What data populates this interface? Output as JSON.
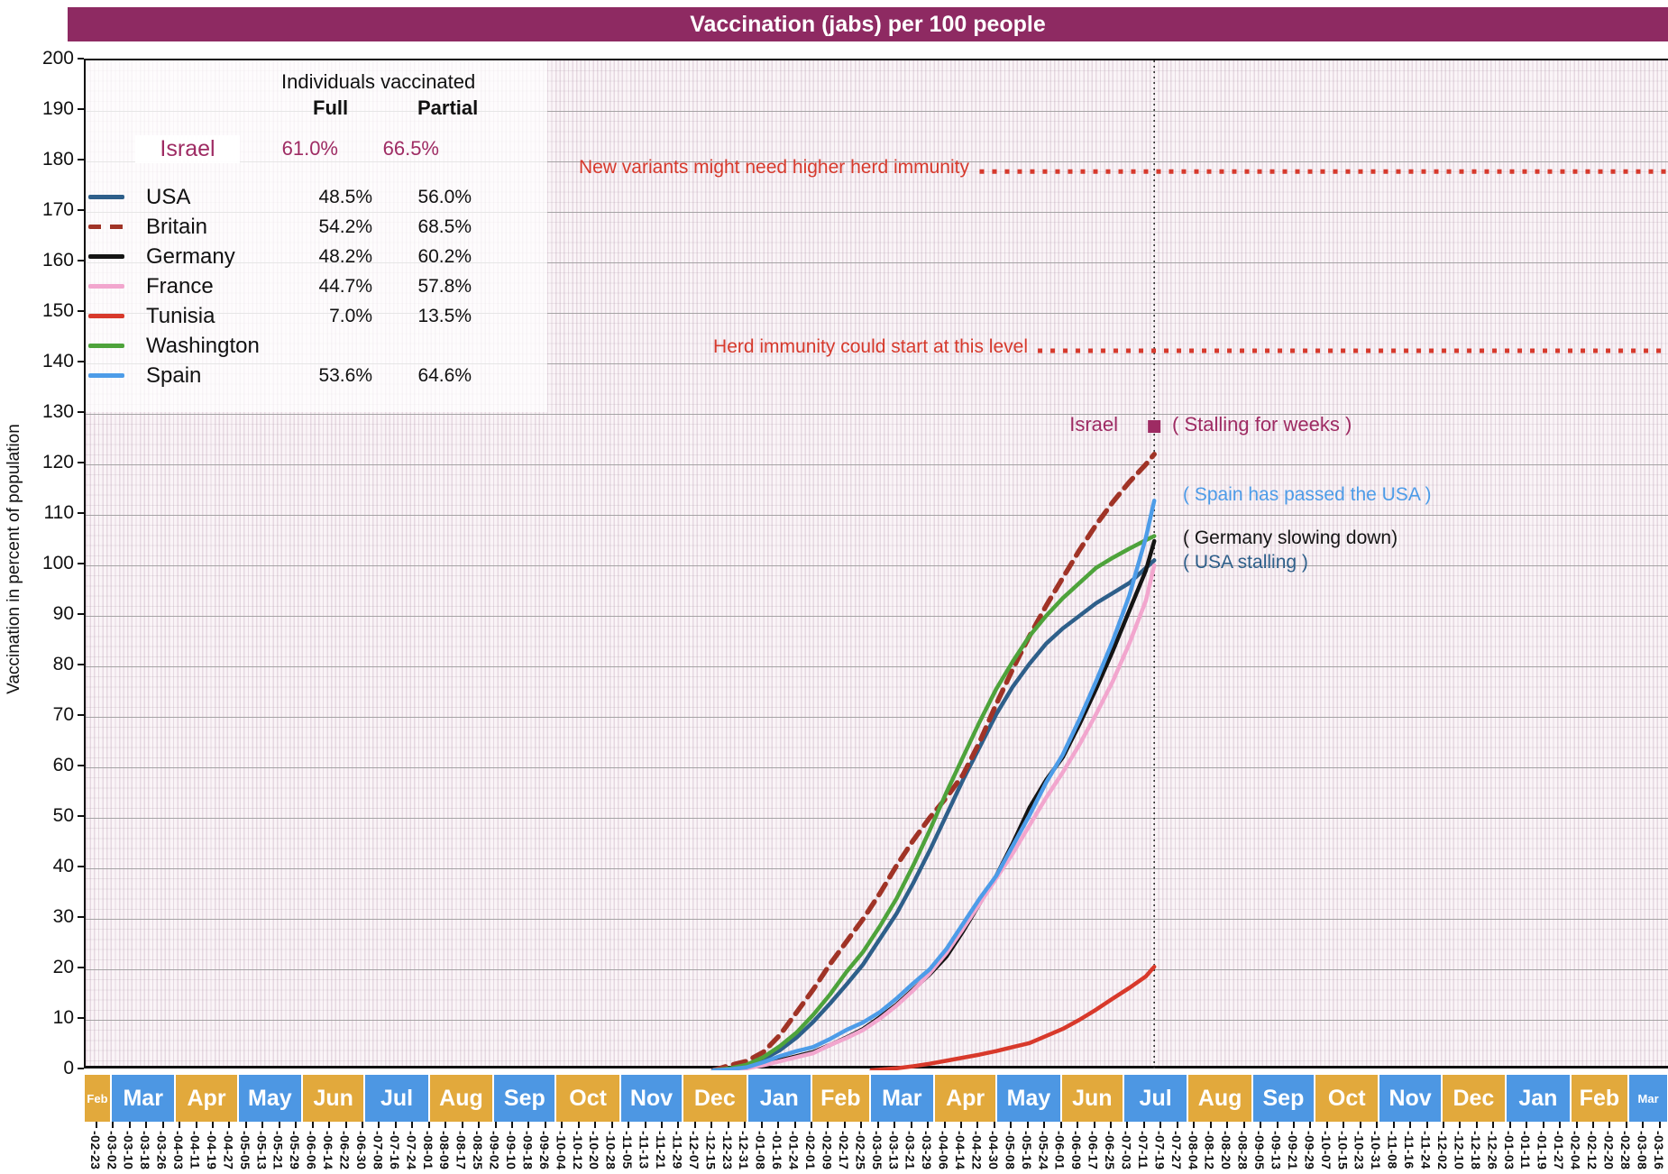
{
  "title": "Vaccination (jabs) per 100 people",
  "colors": {
    "title_bar": "#8E2A62",
    "month_gold": "#E2A93C",
    "month_blue": "#4D97E3",
    "annotation_red": "#D6392C",
    "israel": "#9E2B63"
  },
  "y_axis": {
    "label": "Vaccination in percent of population",
    "min": 0,
    "max": 200,
    "step": 10
  },
  "legend": {
    "header": "Individuals vaccinated",
    "col_full": "Full",
    "col_partial": "Partial",
    "israel": {
      "name": "Israel",
      "full": "61.0%",
      "partial": "66.5%",
      "color": "#9E2B63"
    },
    "rows": [
      {
        "name": "USA",
        "full": "48.5%",
        "partial": "56.0%",
        "color": "#2E5F8A",
        "dash": false
      },
      {
        "name": "Britain",
        "full": "54.2%",
        "partial": "68.5%",
        "color": "#A03326",
        "dash": true
      },
      {
        "name": "Germany",
        "full": "48.2%",
        "partial": "60.2%",
        "color": "#141414",
        "dash": false
      },
      {
        "name": "France",
        "full": "44.7%",
        "partial": "57.8%",
        "color": "#F2A6CE",
        "dash": false
      },
      {
        "name": "Tunisia",
        "full": "7.0%",
        "partial": "13.5%",
        "color": "#D8392B",
        "dash": false
      },
      {
        "name": "Washington",
        "full": "",
        "partial": "",
        "color": "#4EA33B",
        "dash": false
      },
      {
        "name": "Spain",
        "full": "53.6%",
        "partial": "64.6%",
        "color": "#4D9CE8",
        "dash": false
      }
    ]
  },
  "annotations": {
    "new_variants": "New variants might need higher herd immunity",
    "herd_immunity": "Herd immunity could start at this level",
    "israel_label": "Israel",
    "israel_stalling": "( Stalling for weeks )",
    "spain_passed": "( Spain has passed the USA )",
    "germany_slowing": "( Germany slowing down)",
    "usa_stalling": "( USA stalling )"
  },
  "chart_data": {
    "type": "line",
    "title": "Vaccination (jabs) per 100 people",
    "ylabel": "Vaccination in percent of population",
    "ylim": [
      0,
      200
    ],
    "grid": true,
    "x_axis": {
      "start_date": "2020-02-17",
      "end_date": "2022-03-20",
      "total_days": 762,
      "tick_interval_days": 8,
      "first_tick_day": 6,
      "tick_labels": [
        "-02-23",
        "-03-02",
        "-03-10",
        "-03-18",
        "-03-26",
        "-04-03",
        "-04-11",
        "-04-19",
        "-04-27",
        "-05-05",
        "-05-13",
        "-05-21",
        "-05-29",
        "-06-06",
        "-06-14",
        "-06-22",
        "-06-30",
        "-07-08",
        "-07-16",
        "-07-24",
        "-08-01",
        "-08-09",
        "-08-17",
        "-08-25",
        "-09-02",
        "-09-10",
        "-09-18",
        "-09-26",
        "-10-04",
        "-10-12",
        "-10-20",
        "-10-28",
        "-11-05",
        "-11-13",
        "-11-21",
        "-11-29",
        "-12-07",
        "-12-15",
        "-12-23",
        "-12-31",
        "-01-08",
        "-01-16",
        "-01-24",
        "-02-01",
        "-02-09",
        "-02-17",
        "-02-25",
        "-03-05",
        "-03-13",
        "-03-21",
        "-03-29",
        "-04-06",
        "-04-14",
        "-04-22",
        "-04-30",
        "-05-08",
        "-05-16",
        "-05-24",
        "-06-01",
        "-06-09",
        "-06-17",
        "-06-25",
        "-07-03",
        "-07-11",
        "-07-19",
        "-07-27",
        "-08-04",
        "-08-12",
        "-08-20",
        "-08-28",
        "-09-05",
        "-09-13",
        "-09-21",
        "-09-29",
        "-10-07",
        "-10-15",
        "-10-23",
        "-10-31",
        "-11-08",
        "-11-16",
        "-11-24",
        "-12-02",
        "-12-10",
        "-12-18",
        "-12-26",
        "-01-03",
        "-01-11",
        "-01-19",
        "-01-27",
        "-02-04",
        "-02-12",
        "-02-20",
        "-02-28",
        "-03-08",
        "-03-16"
      ]
    },
    "months": [
      {
        "label": "Feb",
        "start": 0,
        "end": 13,
        "tone": "gold"
      },
      {
        "label": "Mar",
        "start": 13,
        "end": 44,
        "tone": "blue"
      },
      {
        "label": "Apr",
        "start": 44,
        "end": 74,
        "tone": "gold"
      },
      {
        "label": "May",
        "start": 74,
        "end": 105,
        "tone": "blue"
      },
      {
        "label": "Jun",
        "start": 105,
        "end": 135,
        "tone": "gold"
      },
      {
        "label": "Jul",
        "start": 135,
        "end": 166,
        "tone": "blue"
      },
      {
        "label": "Aug",
        "start": 166,
        "end": 197,
        "tone": "gold"
      },
      {
        "label": "Sep",
        "start": 197,
        "end": 227,
        "tone": "blue"
      },
      {
        "label": "Oct",
        "start": 227,
        "end": 258,
        "tone": "gold"
      },
      {
        "label": "Nov",
        "start": 258,
        "end": 288,
        "tone": "blue"
      },
      {
        "label": "Dec",
        "start": 288,
        "end": 319,
        "tone": "gold"
      },
      {
        "label": "Jan",
        "start": 319,
        "end": 350,
        "tone": "blue"
      },
      {
        "label": "Feb",
        "start": 350,
        "end": 378,
        "tone": "gold"
      },
      {
        "label": "Mar",
        "start": 378,
        "end": 409,
        "tone": "blue"
      },
      {
        "label": "Apr",
        "start": 409,
        "end": 439,
        "tone": "gold"
      },
      {
        "label": "May",
        "start": 439,
        "end": 470,
        "tone": "blue"
      },
      {
        "label": "Jun",
        "start": 470,
        "end": 500,
        "tone": "gold"
      },
      {
        "label": "Jul",
        "start": 500,
        "end": 531,
        "tone": "blue"
      },
      {
        "label": "Aug",
        "start": 531,
        "end": 562,
        "tone": "gold"
      },
      {
        "label": "Sep",
        "start": 562,
        "end": 592,
        "tone": "blue"
      },
      {
        "label": "Oct",
        "start": 592,
        "end": 623,
        "tone": "gold"
      },
      {
        "label": "Nov",
        "start": 623,
        "end": 653,
        "tone": "blue"
      },
      {
        "label": "Dec",
        "start": 653,
        "end": 684,
        "tone": "gold"
      },
      {
        "label": "Jan",
        "start": 684,
        "end": 715,
        "tone": "blue"
      },
      {
        "label": "Feb",
        "start": 715,
        "end": 743,
        "tone": "gold"
      },
      {
        "label": "Mar",
        "start": 743,
        "end": 762,
        "tone": "blue"
      }
    ],
    "cutoff_day": 514,
    "reference_lines": [
      {
        "label": "New variants might need higher herd immunity",
        "value": 178,
        "dots_from_day": 430
      },
      {
        "label": "Herd immunity could start at this level",
        "value": 142.5,
        "dots_from_day": 458
      }
    ],
    "israel_marker": {
      "day": 514,
      "value": 127.5,
      "color": "#9E2B63"
    },
    "series": [
      {
        "name": "USA",
        "color": "#2E5F8A",
        "dash": "solid",
        "points": [
          [
            302,
            0
          ],
          [
            310,
            0.3
          ],
          [
            318,
            0.9
          ],
          [
            326,
            2.2
          ],
          [
            334,
            4
          ],
          [
            342,
            6.5
          ],
          [
            350,
            9.6
          ],
          [
            358,
            13.2
          ],
          [
            366,
            17
          ],
          [
            374,
            21
          ],
          [
            382,
            26
          ],
          [
            390,
            31
          ],
          [
            398,
            37
          ],
          [
            406,
            43.5
          ],
          [
            414,
            50.5
          ],
          [
            422,
            57.5
          ],
          [
            430,
            64
          ],
          [
            438,
            70.5
          ],
          [
            446,
            76
          ],
          [
            454,
            80.5
          ],
          [
            462,
            84.5
          ],
          [
            470,
            87.5
          ],
          [
            478,
            90
          ],
          [
            486,
            92.5
          ],
          [
            494,
            94.5
          ],
          [
            502,
            96.5
          ],
          [
            510,
            99.5
          ],
          [
            514,
            101
          ]
        ]
      },
      {
        "name": "Britain",
        "color": "#A03326",
        "dash": "dashed",
        "points": [
          [
            302,
            0
          ],
          [
            310,
            1
          ],
          [
            318,
            1.8
          ],
          [
            326,
            3.6
          ],
          [
            334,
            7
          ],
          [
            342,
            11.5
          ],
          [
            350,
            16
          ],
          [
            358,
            21
          ],
          [
            366,
            25.5
          ],
          [
            374,
            30
          ],
          [
            382,
            35
          ],
          [
            390,
            40.5
          ],
          [
            398,
            45.5
          ],
          [
            406,
            50
          ],
          [
            414,
            54
          ],
          [
            422,
            58.5
          ],
          [
            430,
            65
          ],
          [
            438,
            72.5
          ],
          [
            446,
            79.5
          ],
          [
            454,
            86
          ],
          [
            462,
            92
          ],
          [
            470,
            97.5
          ],
          [
            478,
            103
          ],
          [
            486,
            108
          ],
          [
            494,
            112.5
          ],
          [
            502,
            116.5
          ],
          [
            510,
            120
          ],
          [
            514,
            122
          ]
        ]
      },
      {
        "name": "Germany",
        "color": "#141414",
        "dash": "solid",
        "points": [
          [
            302,
            0
          ],
          [
            310,
            0.2
          ],
          [
            318,
            0.5
          ],
          [
            326,
            1.2
          ],
          [
            334,
            2
          ],
          [
            342,
            2.8
          ],
          [
            350,
            3.6
          ],
          [
            358,
            5
          ],
          [
            366,
            6.5
          ],
          [
            374,
            8.2
          ],
          [
            382,
            10.5
          ],
          [
            390,
            13
          ],
          [
            398,
            16
          ],
          [
            406,
            19
          ],
          [
            414,
            22.5
          ],
          [
            422,
            27.5
          ],
          [
            430,
            33
          ],
          [
            438,
            38.5
          ],
          [
            446,
            45
          ],
          [
            454,
            52
          ],
          [
            462,
            57.5
          ],
          [
            470,
            62
          ],
          [
            478,
            68.5
          ],
          [
            486,
            75.5
          ],
          [
            494,
            83
          ],
          [
            502,
            91
          ],
          [
            510,
            99
          ],
          [
            514,
            104.8
          ]
        ]
      },
      {
        "name": "France",
        "color": "#F2A6CE",
        "dash": "solid",
        "points": [
          [
            302,
            0
          ],
          [
            310,
            0.1
          ],
          [
            318,
            0.4
          ],
          [
            326,
            1
          ],
          [
            334,
            1.8
          ],
          [
            342,
            2.6
          ],
          [
            350,
            3.4
          ],
          [
            358,
            5
          ],
          [
            366,
            6.4
          ],
          [
            374,
            8
          ],
          [
            382,
            10.2
          ],
          [
            390,
            12.8
          ],
          [
            398,
            15.8
          ],
          [
            406,
            19.2
          ],
          [
            414,
            23.2
          ],
          [
            422,
            28
          ],
          [
            430,
            33
          ],
          [
            438,
            38
          ],
          [
            446,
            43
          ],
          [
            454,
            48.5
          ],
          [
            462,
            54
          ],
          [
            470,
            59
          ],
          [
            478,
            64.5
          ],
          [
            486,
            70.5
          ],
          [
            494,
            77
          ],
          [
            502,
            84.5
          ],
          [
            510,
            93
          ],
          [
            514,
            100
          ]
        ]
      },
      {
        "name": "Tunisia",
        "color": "#D8392B",
        "dash": "solid",
        "points": [
          [
            378,
            0
          ],
          [
            390,
            0.4
          ],
          [
            398,
            0.8
          ],
          [
            406,
            1.3
          ],
          [
            414,
            1.9
          ],
          [
            422,
            2.5
          ],
          [
            430,
            3.1
          ],
          [
            438,
            3.8
          ],
          [
            446,
            4.6
          ],
          [
            454,
            5.4
          ],
          [
            462,
            6.8
          ],
          [
            470,
            8.2
          ],
          [
            478,
            10
          ],
          [
            486,
            12
          ],
          [
            494,
            14.2
          ],
          [
            502,
            16.3
          ],
          [
            510,
            18.6
          ],
          [
            514,
            20.5
          ]
        ]
      },
      {
        "name": "Washington",
        "color": "#4EA33B",
        "dash": "solid",
        "points": [
          [
            302,
            0
          ],
          [
            310,
            0.4
          ],
          [
            318,
            1.1
          ],
          [
            326,
            2.6
          ],
          [
            334,
            4.8
          ],
          [
            342,
            7.5
          ],
          [
            350,
            11
          ],
          [
            358,
            15
          ],
          [
            366,
            19.5
          ],
          [
            374,
            23.5
          ],
          [
            382,
            28.5
          ],
          [
            390,
            34
          ],
          [
            398,
            40.5
          ],
          [
            406,
            47.5
          ],
          [
            414,
            55
          ],
          [
            422,
            62
          ],
          [
            430,
            69
          ],
          [
            438,
            75.5
          ],
          [
            446,
            81
          ],
          [
            454,
            86
          ],
          [
            462,
            90
          ],
          [
            470,
            93.5
          ],
          [
            478,
            96.5
          ],
          [
            486,
            99.5
          ],
          [
            494,
            101.5
          ],
          [
            502,
            103.3
          ],
          [
            510,
            105
          ],
          [
            514,
            105.8
          ]
        ]
      },
      {
        "name": "Spain",
        "color": "#4D9CE8",
        "dash": "solid",
        "points": [
          [
            302,
            0
          ],
          [
            310,
            0.2
          ],
          [
            318,
            0.6
          ],
          [
            326,
            1.6
          ],
          [
            334,
            2.8
          ],
          [
            342,
            3.8
          ],
          [
            350,
            4.6
          ],
          [
            358,
            6.2
          ],
          [
            366,
            8
          ],
          [
            374,
            9.5
          ],
          [
            382,
            11.5
          ],
          [
            390,
            14.2
          ],
          [
            398,
            17.2
          ],
          [
            406,
            20
          ],
          [
            414,
            24
          ],
          [
            422,
            29
          ],
          [
            430,
            34
          ],
          [
            438,
            38.5
          ],
          [
            446,
            44.5
          ],
          [
            454,
            50.5
          ],
          [
            462,
            57
          ],
          [
            470,
            62.5
          ],
          [
            478,
            69.5
          ],
          [
            486,
            77
          ],
          [
            494,
            85
          ],
          [
            502,
            94
          ],
          [
            510,
            105.5
          ],
          [
            514,
            112.8
          ]
        ]
      }
    ]
  }
}
